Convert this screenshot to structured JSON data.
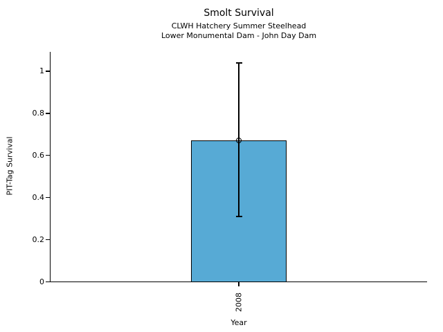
{
  "chart_data": {
    "type": "bar",
    "title": "Smolt Survival",
    "subtitle_line1": "CLWH Hatchery Summer Steelhead",
    "subtitle_line2": "Lower Monumental Dam - John Day Dam",
    "xlabel": "Year",
    "ylabel": "PIT-Tag Survival",
    "categories": [
      "2008"
    ],
    "values": [
      0.67
    ],
    "error_low": [
      0.31
    ],
    "error_high": [
      1.04
    ],
    "yticks": [
      0,
      0.2,
      0.4,
      0.6,
      0.8,
      1
    ],
    "ylim": [
      0,
      1.1
    ],
    "grid": false,
    "legend": "none",
    "bar_color": "#57AAD5",
    "bar_edge_color": "#000000",
    "axis_color": "#000000",
    "background_color": "#FFFFFF"
  }
}
